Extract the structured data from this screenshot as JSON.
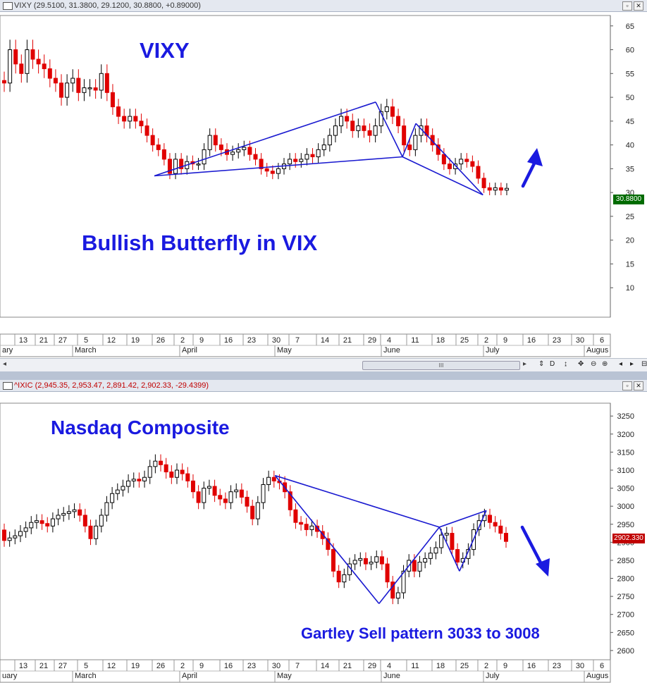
{
  "panels": [
    {
      "title_bar": "VIXY (29.5100, 31.3800, 29.1200, 30.8800, +0.89000)",
      "window_buttons": [
        "restore-icon",
        "close-icon"
      ],
      "price_tag": "30.8800",
      "annotations": {
        "symbol_label": "VIXY",
        "pattern_label": "Bullish Butterfly in VIX",
        "arrow": "up-arrow"
      }
    },
    {
      "title_bar": "^IXIC (2,945.35, 2,953.47, 2,891.42, 2,902.33, -29.4399)",
      "window_buttons": [
        "restore-icon",
        "close-icon"
      ],
      "price_tag": "2902.330",
      "annotations": {
        "symbol_label": "Nasdaq Composite",
        "pattern_label": "Gartley Sell pattern 3033 to 3008",
        "arrow": "down-arrow"
      }
    }
  ],
  "scrollbar": {
    "thumb_label": "III",
    "tools": [
      "D",
      "+",
      "-",
      "+"
    ]
  },
  "chart_data": [
    {
      "type": "candlestick",
      "series_name": "VIXY",
      "y_ticks": [
        10,
        15,
        20,
        25,
        30,
        35,
        40,
        45,
        50,
        55,
        60,
        65
      ],
      "ylim": [
        5,
        66
      ],
      "x_day_labels": [
        "13",
        "21",
        "27",
        "5",
        "12",
        "19",
        "26",
        "2",
        "9",
        "16",
        "23",
        "30",
        "7",
        "14",
        "21",
        "29",
        "4",
        "11",
        "18",
        "25",
        "2",
        "9",
        "16",
        "23",
        "30",
        "6"
      ],
      "x_month_labels": [
        "ary",
        "March",
        "April",
        "May",
        "June",
        "July",
        "Augus"
      ],
      "last_price": 30.88,
      "close_prices": [
        53,
        60,
        57,
        55,
        60,
        58,
        57,
        56,
        54,
        53,
        50,
        53,
        54,
        51,
        52,
        52,
        51.5,
        55,
        51,
        48,
        46,
        45,
        46,
        45,
        44,
        42,
        40,
        39,
        37,
        34,
        37,
        35,
        36.5,
        36,
        36,
        39,
        42,
        40,
        39,
        38,
        38.5,
        39,
        39.5,
        38,
        37,
        35,
        34.5,
        34,
        35,
        36,
        37,
        36.5,
        37,
        38,
        37.5,
        39,
        40,
        42,
        44,
        46,
        45,
        43,
        44,
        43,
        42,
        44,
        47,
        48,
        46,
        44,
        40,
        39,
        42,
        44,
        42,
        40,
        38,
        36,
        35,
        36,
        37,
        36.5,
        35.5,
        33,
        31,
        30.5,
        31,
        30.5,
        30.88
      ],
      "patterns": [
        {
          "name": "Bullish Butterfly",
          "points": [
            [
              "2012-03-26",
              33.5
            ],
            [
              "2012-05-31",
              49
            ],
            [
              "2012-06-08",
              37.5
            ],
            [
              "2012-06-12",
              44.5
            ],
            [
              "2012-07-02",
              29.5
            ]
          ]
        }
      ]
    },
    {
      "type": "candlestick",
      "series_name": "^IXIC",
      "y_ticks": [
        2600,
        2650,
        2700,
        2750,
        2800,
        2850,
        2900,
        2950,
        3000,
        3050,
        3100,
        3150,
        3200,
        3250
      ],
      "ylim": [
        2590,
        3270
      ],
      "x_day_labels": [
        "13",
        "21",
        "27",
        "5",
        "12",
        "19",
        "26",
        "2",
        "9",
        "16",
        "23",
        "30",
        "7",
        "14",
        "21",
        "29",
        "4",
        "11",
        "18",
        "25",
        "2",
        "9",
        "16",
        "23",
        "30",
        "6"
      ],
      "x_month_labels": [
        "uary",
        "March",
        "April",
        "May",
        "June",
        "July",
        "Augus"
      ],
      "last_price": 2902.33,
      "close_prices": [
        2905,
        2912,
        2918,
        2930,
        2940,
        2955,
        2960,
        2952,
        2945,
        2965,
        2975,
        2980,
        2985,
        2990,
        2975,
        2945,
        2910,
        2945,
        2975,
        3010,
        3035,
        3045,
        3055,
        3070,
        3075,
        3070,
        3080,
        3110,
        3125,
        3115,
        3095,
        3080,
        3100,
        3090,
        3070,
        3040,
        3010,
        3050,
        3055,
        3030,
        3020,
        3010,
        3040,
        3045,
        3025,
        3000,
        2965,
        3010,
        3060,
        3080,
        3070,
        3065,
        3040,
        2990,
        2955,
        2950,
        2935,
        2945,
        2930,
        2910,
        2880,
        2820,
        2790,
        2810,
        2840,
        2850,
        2855,
        2840,
        2845,
        2860,
        2840,
        2790,
        2745,
        2760,
        2820,
        2850,
        2820,
        2845,
        2855,
        2870,
        2885,
        2920,
        2925,
        2880,
        2845,
        2855,
        2880,
        2935,
        2960,
        2975,
        2955,
        2945,
        2925,
        2902.33
      ],
      "patterns": [
        {
          "name": "Gartley Sell",
          "points": [
            [
              "2012-05-01",
              3085
            ],
            [
              "2012-06-01",
              2730
            ],
            [
              "2012-06-19",
              2942
            ],
            [
              "2012-06-25",
              2820
            ],
            [
              "2012-07-03",
              2988
            ]
          ]
        }
      ]
    }
  ]
}
